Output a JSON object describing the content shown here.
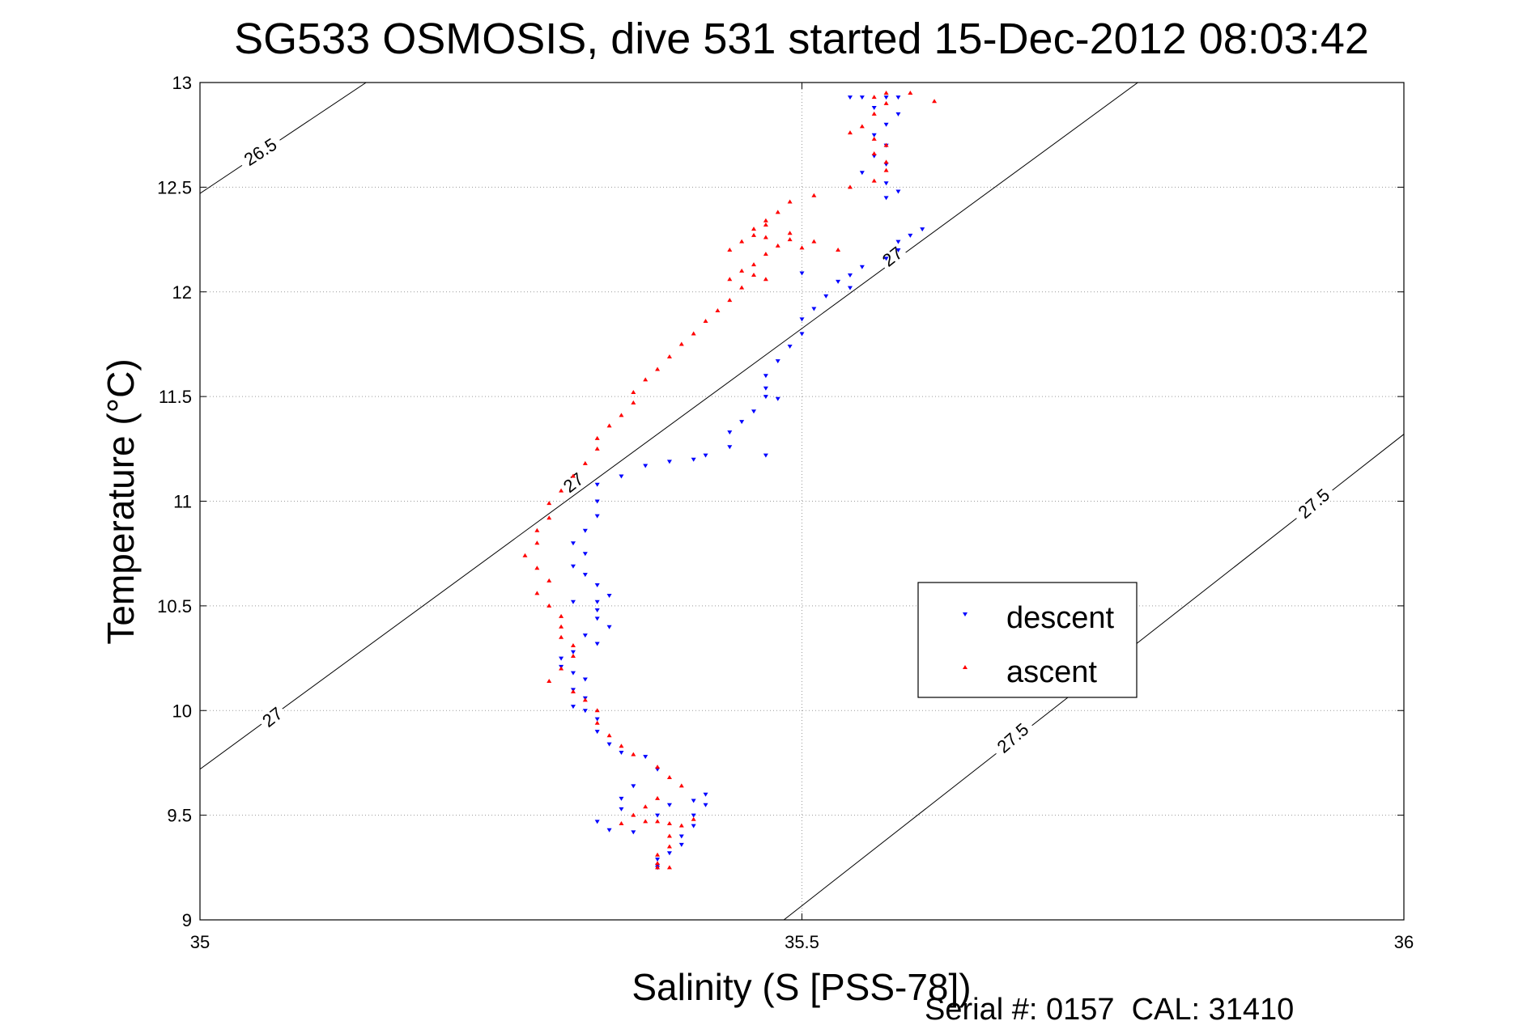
{
  "chart_data": {
    "type": "scatter",
    "title": "SG533 OSMOSIS, dive 531 started 15-Dec-2012 08:03:42",
    "xlabel": "Salinity (S [PSS-78])",
    "ylabel": "Temperature (°C)",
    "footer": "Serial #: 0157  CAL: 31410",
    "xlim": [
      35,
      36
    ],
    "ylim": [
      9,
      13
    ],
    "xticks": [
      35,
      35.5,
      36
    ],
    "xtick_labels": [
      "35",
      "35.5",
      "36"
    ],
    "yticks": [
      9,
      9.5,
      10,
      10.5,
      11,
      11.5,
      12,
      12.5,
      13
    ],
    "ytick_labels": [
      "9",
      "9.5",
      "10",
      "10.5",
      "11",
      "11.5",
      "12",
      "12.5",
      "13"
    ],
    "grid": true,
    "legend_position": "center-right",
    "density_contours": [
      {
        "label": "26.5",
        "points": [
          [
            35.0,
            12.47
          ],
          [
            35.138,
            13.0
          ]
        ]
      },
      {
        "label": "27",
        "points": [
          [
            35.0,
            9.72
          ],
          [
            35.779,
            13.0
          ]
        ]
      },
      {
        "label": "27.5",
        "points": [
          [
            35.485,
            9.0
          ],
          [
            36.0,
            11.32
          ]
        ]
      }
    ],
    "contour_labels": [
      {
        "text": "26.5",
        "x": 35.05,
        "y": 12.67,
        "angle": -33
      },
      {
        "text": "27",
        "x": 35.06,
        "y": 9.97,
        "angle": -38
      },
      {
        "text": "27",
        "x": 35.31,
        "y": 11.09,
        "angle": -38
      },
      {
        "text": "27",
        "x": 35.575,
        "y": 12.17,
        "angle": -38
      },
      {
        "text": "27.5",
        "x": 35.675,
        "y": 9.87,
        "angle": -41
      },
      {
        "text": "27.5",
        "x": 35.925,
        "y": 10.99,
        "angle": -41
      }
    ],
    "series": [
      {
        "name": "descent",
        "color": "#0000ff",
        "marker": "triangle-down",
        "points": [
          [
            35.58,
            12.93
          ],
          [
            35.57,
            12.93
          ],
          [
            35.55,
            12.93
          ],
          [
            35.54,
            12.93
          ],
          [
            35.56,
            12.88
          ],
          [
            35.58,
            12.85
          ],
          [
            35.57,
            12.8
          ],
          [
            35.56,
            12.75
          ],
          [
            35.57,
            12.7
          ],
          [
            35.56,
            12.65
          ],
          [
            35.57,
            12.61
          ],
          [
            35.55,
            12.57
          ],
          [
            35.57,
            12.52
          ],
          [
            35.58,
            12.48
          ],
          [
            35.57,
            12.45
          ],
          [
            35.6,
            12.3
          ],
          [
            35.59,
            12.27
          ],
          [
            35.58,
            12.24
          ],
          [
            35.58,
            12.2
          ],
          [
            35.57,
            12.16
          ],
          [
            35.55,
            12.12
          ],
          [
            35.54,
            12.08
          ],
          [
            35.53,
            12.05
          ],
          [
            35.5,
            12.09
          ],
          [
            35.54,
            12.02
          ],
          [
            35.52,
            11.98
          ],
          [
            35.51,
            11.92
          ],
          [
            35.5,
            11.87
          ],
          [
            35.5,
            11.8
          ],
          [
            35.49,
            11.74
          ],
          [
            35.48,
            11.67
          ],
          [
            35.47,
            11.6
          ],
          [
            35.47,
            11.54
          ],
          [
            35.48,
            11.49
          ],
          [
            35.46,
            11.43
          ],
          [
            35.45,
            11.38
          ],
          [
            35.47,
            11.5
          ],
          [
            35.44,
            11.33
          ],
          [
            35.44,
            11.26
          ],
          [
            35.47,
            11.22
          ],
          [
            35.42,
            11.22
          ],
          [
            35.41,
            11.2
          ],
          [
            35.39,
            11.19
          ],
          [
            35.37,
            11.17
          ],
          [
            35.35,
            11.12
          ],
          [
            35.33,
            11.08
          ],
          [
            35.33,
            11.0
          ],
          [
            35.33,
            10.93
          ],
          [
            35.32,
            10.86
          ],
          [
            35.31,
            10.8
          ],
          [
            35.32,
            10.75
          ],
          [
            35.31,
            10.69
          ],
          [
            35.32,
            10.65
          ],
          [
            35.33,
            10.6
          ],
          [
            35.34,
            10.55
          ],
          [
            35.33,
            10.52
          ],
          [
            35.33,
            10.48
          ],
          [
            35.31,
            10.52
          ],
          [
            35.33,
            10.44
          ],
          [
            35.34,
            10.4
          ],
          [
            35.32,
            10.36
          ],
          [
            35.33,
            10.32
          ],
          [
            35.31,
            10.28
          ],
          [
            35.3,
            10.25
          ],
          [
            35.3,
            10.21
          ],
          [
            35.31,
            10.18
          ],
          [
            35.32,
            10.15
          ],
          [
            35.31,
            10.1
          ],
          [
            35.32,
            10.06
          ],
          [
            35.31,
            10.02
          ],
          [
            35.32,
            10.0
          ],
          [
            35.33,
            9.96
          ],
          [
            35.33,
            9.9
          ],
          [
            35.34,
            9.84
          ],
          [
            35.35,
            9.8
          ],
          [
            35.37,
            9.78
          ],
          [
            35.38,
            9.72
          ],
          [
            35.36,
            9.64
          ],
          [
            35.35,
            9.58
          ],
          [
            35.35,
            9.53
          ],
          [
            35.33,
            9.47
          ],
          [
            35.34,
            9.43
          ],
          [
            35.36,
            9.42
          ],
          [
            35.38,
            9.5
          ],
          [
            35.39,
            9.55
          ],
          [
            35.41,
            9.57
          ],
          [
            35.42,
            9.6
          ],
          [
            35.42,
            9.55
          ],
          [
            35.41,
            9.5
          ],
          [
            35.41,
            9.45
          ],
          [
            35.4,
            9.4
          ],
          [
            35.4,
            9.36
          ],
          [
            35.39,
            9.32
          ],
          [
            35.38,
            9.29
          ],
          [
            35.38,
            9.26
          ],
          [
            35.38,
            9.25
          ]
        ]
      },
      {
        "name": "ascent",
        "color": "#ff0000",
        "marker": "triangle-up",
        "points": [
          [
            35.61,
            12.91
          ],
          [
            35.59,
            12.95
          ],
          [
            35.57,
            12.95
          ],
          [
            35.56,
            12.93
          ],
          [
            35.57,
            12.9
          ],
          [
            35.56,
            12.85
          ],
          [
            35.55,
            12.79
          ],
          [
            35.54,
            12.76
          ],
          [
            35.56,
            12.73
          ],
          [
            35.57,
            12.7
          ],
          [
            35.56,
            12.66
          ],
          [
            35.57,
            12.62
          ],
          [
            35.57,
            12.58
          ],
          [
            35.56,
            12.53
          ],
          [
            35.54,
            12.5
          ],
          [
            35.51,
            12.46
          ],
          [
            35.49,
            12.43
          ],
          [
            35.48,
            12.38
          ],
          [
            35.47,
            12.34
          ],
          [
            35.46,
            12.3
          ],
          [
            35.47,
            12.26
          ],
          [
            35.48,
            12.22
          ],
          [
            35.49,
            12.25
          ],
          [
            35.5,
            12.21
          ],
          [
            35.53,
            12.2
          ],
          [
            35.51,
            12.24
          ],
          [
            35.49,
            12.28
          ],
          [
            35.47,
            12.32
          ],
          [
            35.46,
            12.27
          ],
          [
            35.45,
            12.24
          ],
          [
            35.44,
            12.2
          ],
          [
            35.47,
            12.18
          ],
          [
            35.46,
            12.13
          ],
          [
            35.45,
            12.1
          ],
          [
            35.44,
            12.06
          ],
          [
            35.46,
            12.08
          ],
          [
            35.47,
            12.06
          ],
          [
            35.45,
            12.02
          ],
          [
            35.44,
            11.96
          ],
          [
            35.43,
            11.91
          ],
          [
            35.42,
            11.86
          ],
          [
            35.41,
            11.8
          ],
          [
            35.4,
            11.75
          ],
          [
            35.39,
            11.69
          ],
          [
            35.38,
            11.63
          ],
          [
            35.37,
            11.58
          ],
          [
            35.36,
            11.52
          ],
          [
            35.36,
            11.47
          ],
          [
            35.35,
            11.41
          ],
          [
            35.34,
            11.36
          ],
          [
            35.33,
            11.3
          ],
          [
            35.33,
            11.25
          ],
          [
            35.32,
            11.18
          ],
          [
            35.31,
            11.12
          ],
          [
            35.3,
            11.05
          ],
          [
            35.29,
            10.99
          ],
          [
            35.29,
            10.92
          ],
          [
            35.28,
            10.86
          ],
          [
            35.28,
            10.8
          ],
          [
            35.27,
            10.74
          ],
          [
            35.28,
            10.68
          ],
          [
            35.29,
            10.62
          ],
          [
            35.28,
            10.56
          ],
          [
            35.29,
            10.5
          ],
          [
            35.3,
            10.45
          ],
          [
            35.3,
            10.4
          ],
          [
            35.3,
            10.35
          ],
          [
            35.31,
            10.31
          ],
          [
            35.31,
            10.26
          ],
          [
            35.3,
            10.2
          ],
          [
            35.29,
            10.14
          ],
          [
            35.31,
            10.09
          ],
          [
            35.32,
            10.05
          ],
          [
            35.33,
            10.0
          ],
          [
            35.33,
            9.94
          ],
          [
            35.34,
            9.88
          ],
          [
            35.35,
            9.83
          ],
          [
            35.36,
            9.79
          ],
          [
            35.38,
            9.73
          ],
          [
            35.39,
            9.68
          ],
          [
            35.4,
            9.64
          ],
          [
            35.38,
            9.58
          ],
          [
            35.37,
            9.54
          ],
          [
            35.36,
            9.5
          ],
          [
            35.35,
            9.46
          ],
          [
            35.37,
            9.47
          ],
          [
            35.38,
            9.47
          ],
          [
            35.39,
            9.46
          ],
          [
            35.41,
            9.48
          ],
          [
            35.4,
            9.45
          ],
          [
            35.39,
            9.4
          ],
          [
            35.39,
            9.35
          ],
          [
            35.38,
            9.31
          ],
          [
            35.38,
            9.27
          ],
          [
            35.38,
            9.25
          ],
          [
            35.39,
            9.25
          ]
        ]
      }
    ]
  }
}
